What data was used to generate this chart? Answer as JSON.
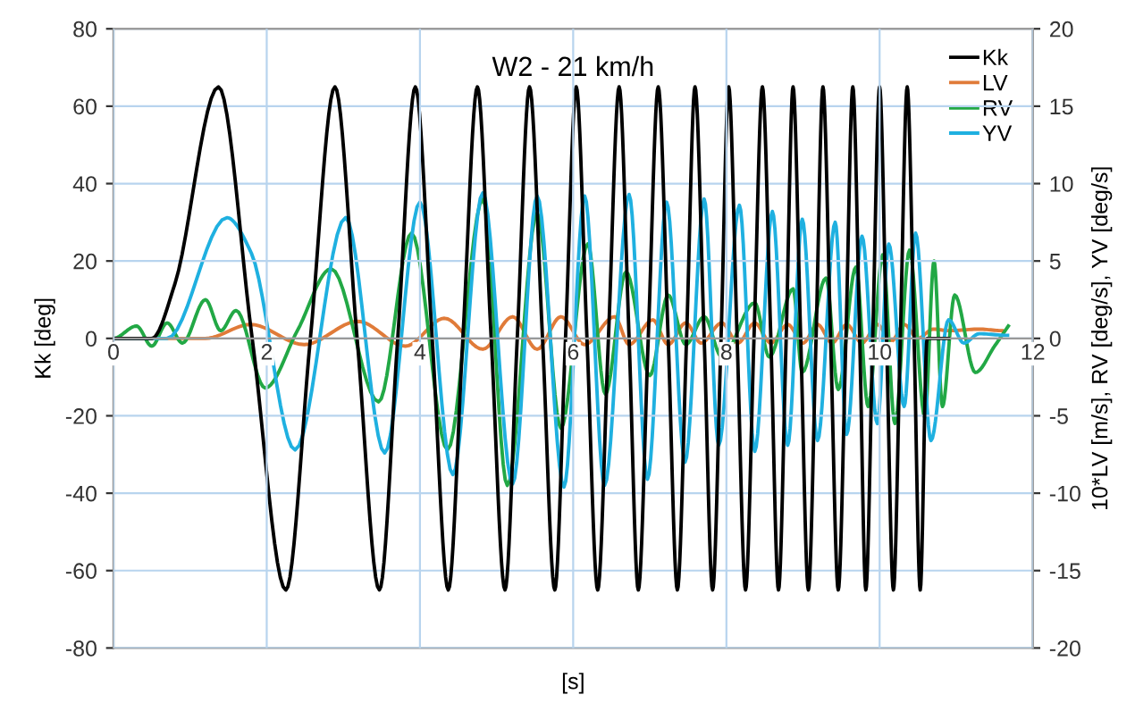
{
  "chart_data": {
    "type": "line",
    "title": "W2 - 21 km/h",
    "xlabel": "[s]",
    "ylabel": "Kk [deg]",
    "y2label": "10*LV [m/s], RV [deg/s], YV [deg/s]",
    "xlim": [
      0,
      12
    ],
    "xticks": [
      0,
      2,
      4,
      6,
      8,
      10,
      12
    ],
    "ylim": [
      -80,
      80
    ],
    "yticks": [
      -80,
      -60,
      -40,
      -20,
      0,
      20,
      40,
      60,
      80
    ],
    "y2lim": [
      -20,
      20
    ],
    "y2ticks": [
      -20,
      -15,
      -10,
      -5,
      0,
      5,
      10,
      15,
      20
    ],
    "grid": true,
    "legend": "top right",
    "series": [
      {
        "name": "Kk",
        "color": "#000000",
        "x": [
          0,
          0.5,
          0.8,
          1.37,
          1.81,
          2.25,
          2.57,
          2.89,
          3.18,
          3.47,
          3.71,
          3.94,
          4.16,
          4.37,
          4.56,
          4.75,
          4.93,
          5.11,
          5.27,
          5.43,
          5.6,
          5.76,
          5.9,
          6.04,
          6.18,
          6.32,
          6.46,
          6.6,
          6.73,
          6.85,
          6.98,
          7.11,
          7.24,
          7.36,
          7.48,
          7.59,
          7.71,
          7.82,
          7.93,
          8.03,
          8.14,
          8.25,
          8.36,
          8.47,
          8.58,
          8.68,
          8.78,
          8.87,
          8.97,
          9.07,
          9.17,
          9.26,
          9.36,
          9.46,
          9.56,
          9.65,
          9.74,
          9.82,
          9.91,
          10.0,
          10.09,
          10.18,
          10.27,
          10.36,
          10.45,
          10.53,
          10.62,
          10.9
        ],
        "values": [
          0,
          0,
          14,
          65,
          0,
          -65,
          0,
          65,
          0,
          -65,
          0,
          65,
          0,
          -65,
          0,
          65,
          0,
          -65,
          0,
          65,
          0,
          -65,
          0,
          65,
          0,
          -65,
          0,
          65,
          0,
          -65,
          0,
          65,
          0,
          -65,
          0,
          65,
          0,
          -65,
          0,
          65,
          0,
          -65,
          0,
          65,
          0,
          -65,
          0,
          65,
          0,
          -65,
          0,
          65,
          0,
          -65,
          0,
          65,
          0,
          -65,
          0,
          65,
          0,
          -65,
          0,
          65,
          0,
          -65,
          0,
          0
        ]
      },
      {
        "name": "LV",
        "color": "#e07b39",
        "axis": "y2",
        "x": [
          0,
          1.2,
          1.79,
          2.49,
          3.19,
          3.81,
          4.32,
          4.82,
          5.21,
          5.53,
          5.84,
          6.15,
          6.54,
          6.73,
          7.04,
          7.24,
          7.47,
          7.67,
          7.94,
          8.15,
          8.37,
          8.58,
          8.8,
          9.0,
          9.19,
          9.38,
          9.57,
          9.77,
          9.97,
          10.15,
          10.32,
          10.5,
          10.7,
          10.9,
          11.3,
          11.6
        ],
        "values": [
          0,
          0,
          0.9,
          -0.4,
          1.1,
          -0.5,
          1.3,
          -0.7,
          1.4,
          -0.7,
          1.4,
          -0.4,
          1.4,
          -0.4,
          1.2,
          -0.4,
          1.0,
          -0.3,
          1.0,
          -0.3,
          1.0,
          -0.3,
          0.9,
          -0.3,
          0.9,
          -0.3,
          0.9,
          -0.3,
          0.9,
          -0.2,
          0.9,
          0,
          0.6,
          0.5,
          0.6,
          0.5
        ]
      },
      {
        "name": "RV",
        "color": "#22a845",
        "axis": "y2",
        "x": [
          0,
          0.3,
          0.5,
          0.7,
          0.9,
          1.2,
          1.4,
          1.6,
          1.98,
          2.4,
          2.84,
          3.46,
          3.89,
          4.36,
          4.82,
          5.14,
          5.53,
          5.84,
          6.19,
          6.42,
          6.69,
          7.0,
          7.24,
          7.47,
          7.71,
          7.94,
          8.37,
          8.56,
          8.87,
          8.99,
          9.3,
          9.46,
          9.69,
          9.85,
          10.04,
          10.2,
          10.39,
          10.59,
          10.71,
          10.82,
          10.98,
          11.25,
          11.5,
          11.68
        ],
        "values": [
          0,
          0.8,
          -0.5,
          1.0,
          -0.3,
          2.5,
          0.5,
          1.8,
          -3.2,
          0.5,
          4.5,
          -4.1,
          6.8,
          -7.2,
          9.0,
          -9.5,
          8.1,
          -5.8,
          6.1,
          -3.6,
          4.3,
          -2.4,
          2.8,
          -0.4,
          1.4,
          -1.2,
          2.3,
          -1.2,
          3.2,
          -2.2,
          3.9,
          -3.3,
          4.6,
          -4.4,
          5.4,
          -5.5,
          5.7,
          -5.1,
          5.0,
          -4.4,
          2.8,
          -2.2,
          -0.5,
          0.8
        ]
      },
      {
        "name": "YV",
        "color": "#1fb0e0",
        "axis": "y2",
        "x": [
          0,
          0.7,
          1.48,
          1.8,
          2.37,
          3.03,
          3.54,
          4.0,
          4.43,
          4.82,
          5.21,
          5.53,
          5.88,
          6.15,
          6.41,
          6.73,
          6.97,
          7.22,
          7.46,
          7.71,
          7.9,
          8.17,
          8.37,
          8.6,
          8.8,
          8.99,
          9.19,
          9.42,
          9.57,
          9.77,
          9.97,
          10.12,
          10.32,
          10.47,
          10.67,
          10.9,
          11.1,
          11.3,
          11.67
        ],
        "values": [
          0,
          0,
          7.8,
          5.5,
          -7.2,
          7.8,
          -7.4,
          8.8,
          -8.8,
          9.4,
          -9.4,
          9.2,
          -9.6,
          9.2,
          -9.5,
          9.3,
          -9.1,
          8.8,
          -8.0,
          9.0,
          -6.9,
          8.6,
          -7.3,
          8.2,
          -6.9,
          7.7,
          -6.6,
          7.5,
          -6.2,
          6.6,
          -5.5,
          6.1,
          -4.4,
          6.8,
          -6.6,
          1.2,
          -0.3,
          0.3,
          0.2
        ]
      }
    ]
  }
}
